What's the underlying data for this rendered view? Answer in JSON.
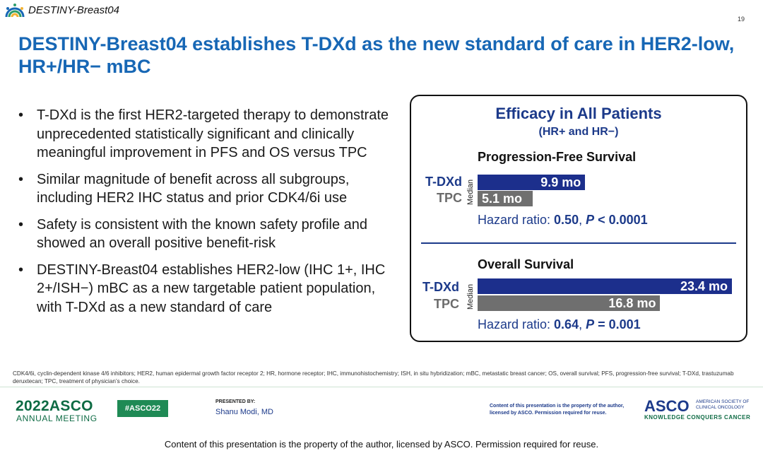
{
  "header": {
    "conference_label": "DESTINY-Breast04",
    "page_number": "19",
    "title": "DESTINY-Breast04 establishes T-DXd as the new standard of care in HER2-low, HR+/HR− mBC"
  },
  "bullets": [
    "T-DXd is the first HER2-targeted therapy to demonstrate unprecedented statistically significant and clinically meaningful improvement in PFS and OS versus TPC",
    "Similar magnitude of benefit across all subgroups, including HER2 IHC status and prior CDK4/6i use",
    "Safety is consistent with the known safety profile and showed an overall positive benefit-risk",
    "DESTINY-Breast04 establishes HER2-low (IHC 1+, IHC 2+/ISH−) mBC as a new targetable patient population, with T-DXd as a new standard of care"
  ],
  "bullet_symbol": "•",
  "panel": {
    "title": "Efficacy in All Patients",
    "subtitle": "(HR+ and HR−)",
    "median_label": "Median",
    "pfs": {
      "title": "Progression-Free Survival",
      "arm_a": "T-DXd",
      "arm_b": "TPC",
      "value_a": 9.9,
      "value_b": 5.1,
      "label_a": "9.9 mo",
      "label_b": "5.1 mo",
      "hr_prefix": "Hazard ratio: ",
      "hr_value": "0.50",
      "hr_sep": ", ",
      "p_symbol": "P",
      "p_value": " < 0.0001"
    },
    "os": {
      "title": "Overall Survival",
      "arm_a": "T-DXd",
      "arm_b": "TPC",
      "value_a": 23.4,
      "value_b": 16.8,
      "label_a": "23.4 mo",
      "label_b": "16.8 mo",
      "hr_prefix": "Hazard ratio: ",
      "hr_value": "0.64",
      "hr_sep": ", ",
      "p_symbol": "P",
      "p_value": " = 0.001"
    }
  },
  "footnote": "CDK4/6i, cyclin-dependent kinase 4/6 inhibitors; HER2, human epidermal growth factor receptor 2; HR, hormone receptor; IHC, immunohistochemistry; ISH, in situ hybridization; mBC, metastatic breast cancer; OS, overall survival; PFS, progression-free survival; T-DXd, trastuzumab deruxtecan; TPC, treatment of physician’s choice.",
  "footer": {
    "meeting_year": "2022",
    "meeting_org": "ASCO",
    "meeting_name": "ANNUAL MEETING",
    "hashtag": "#ASCO22",
    "presented_by_label": "PRESENTED BY:",
    "presenter": "Shanu Modi, MD",
    "property_notice_small": "Content of this presentation is the property of the author, licensed by ASCO. Permission required for reuse.",
    "org_logo": "ASCO",
    "org_full": "AMERICAN SOCIETY OF CLINICAL ONCOLOGY",
    "org_tagline": "KNOWLEDGE CONQUERS CANCER",
    "property_notice": "Content of this presentation is the property of the author, licensed by ASCO. Permission required for reuse."
  },
  "colors": {
    "title_blue": "#1767b5",
    "navy": "#1c3a8a",
    "bar_tdxd": "#1c2f8c",
    "bar_tpc": "#6f6f6f",
    "asco_green": "#0e6b44"
  }
}
